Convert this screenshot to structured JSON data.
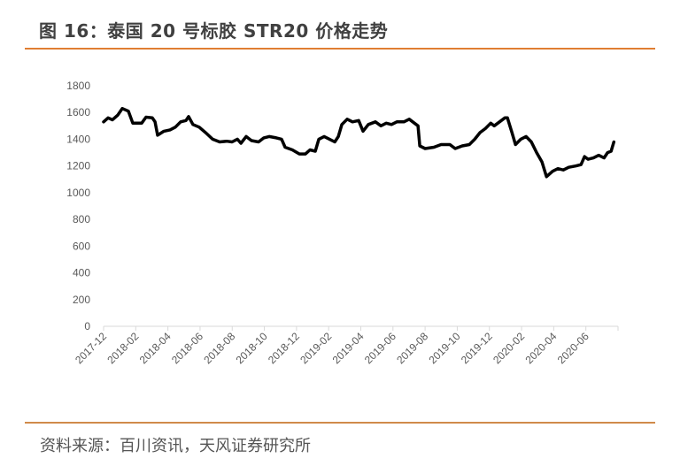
{
  "title": "图 16：泰国 20 号标胶 STR20 价格走势",
  "source": "资料来源：百川资讯，天风证券研究所",
  "colors": {
    "accent": "#e07e32",
    "line": "#000000",
    "axis": "#d9d9d9"
  },
  "chart_data": {
    "type": "line",
    "title": "",
    "xlabel": "",
    "ylabel": "",
    "x_unit": "months since 2017-12",
    "xlim": [
      0,
      32
    ],
    "ylim": [
      0,
      1800
    ],
    "yticks": [
      0,
      200,
      400,
      600,
      800,
      1000,
      1200,
      1400,
      1600,
      1800
    ],
    "xtick_labels": [
      "2017-12",
      "2018-02",
      "2018-04",
      "2018-06",
      "2018-08",
      "2018-10",
      "2018-12",
      "2019-02",
      "2019-04",
      "2019-06",
      "2019-08",
      "2019-10",
      "2019-12",
      "2020-02",
      "2020-04",
      "2020-06"
    ],
    "grid": false,
    "legend": "none",
    "series": [
      {
        "name": "STR20",
        "x": [
          0,
          0.28,
          0.55,
          0.88,
          1.16,
          1.54,
          1.82,
          2.37,
          2.64,
          3.03,
          3.2,
          3.36,
          3.75,
          4.13,
          4.46,
          4.79,
          5.12,
          5.29,
          5.56,
          5.95,
          6.34,
          6.78,
          7.22,
          7.66,
          7.99,
          8.32,
          8.54,
          8.87,
          9.2,
          9.64,
          9.97,
          10.3,
          10.74,
          11.07,
          11.29,
          11.74,
          12.18,
          12.56,
          12.84,
          13.17,
          13.39,
          13.72,
          14.05,
          14.38,
          14.6,
          14.82,
          15.15,
          15.48,
          15.87,
          16.14,
          16.47,
          16.91,
          17.25,
          17.58,
          17.91,
          18.24,
          18.68,
          19.01,
          19.34,
          19.56,
          19.67,
          20.0,
          20.55,
          20.99,
          21.54,
          21.87,
          22.31,
          22.75,
          23.09,
          23.42,
          23.75,
          24.08,
          24.3,
          24.63,
          24.96,
          25.12,
          25.4,
          25.62,
          25.95,
          26.28,
          26.61,
          26.94,
          27.27,
          27.55,
          27.93,
          28.26,
          28.6,
          28.93,
          29.37,
          29.7,
          29.92,
          30.14,
          30.47,
          30.8,
          31.13,
          31.35,
          31.57,
          31.74
        ],
        "values": [
          1530,
          1560,
          1545,
          1580,
          1630,
          1610,
          1520,
          1520,
          1565,
          1560,
          1530,
          1430,
          1460,
          1470,
          1490,
          1530,
          1540,
          1570,
          1510,
          1490,
          1450,
          1400,
          1380,
          1385,
          1380,
          1400,
          1370,
          1420,
          1390,
          1380,
          1410,
          1420,
          1410,
          1400,
          1340,
          1320,
          1290,
          1290,
          1320,
          1310,
          1400,
          1420,
          1400,
          1380,
          1420,
          1510,
          1550,
          1530,
          1540,
          1460,
          1510,
          1530,
          1500,
          1520,
          1510,
          1530,
          1530,
          1550,
          1520,
          1500,
          1350,
          1330,
          1340,
          1360,
          1360,
          1330,
          1350,
          1360,
          1400,
          1450,
          1480,
          1520,
          1500,
          1530,
          1560,
          1560,
          1450,
          1360,
          1400,
          1420,
          1380,
          1300,
          1230,
          1120,
          1160,
          1180,
          1170,
          1190,
          1200,
          1210,
          1270,
          1250,
          1260,
          1280,
          1260,
          1300,
          1310,
          1380
        ]
      }
    ]
  }
}
